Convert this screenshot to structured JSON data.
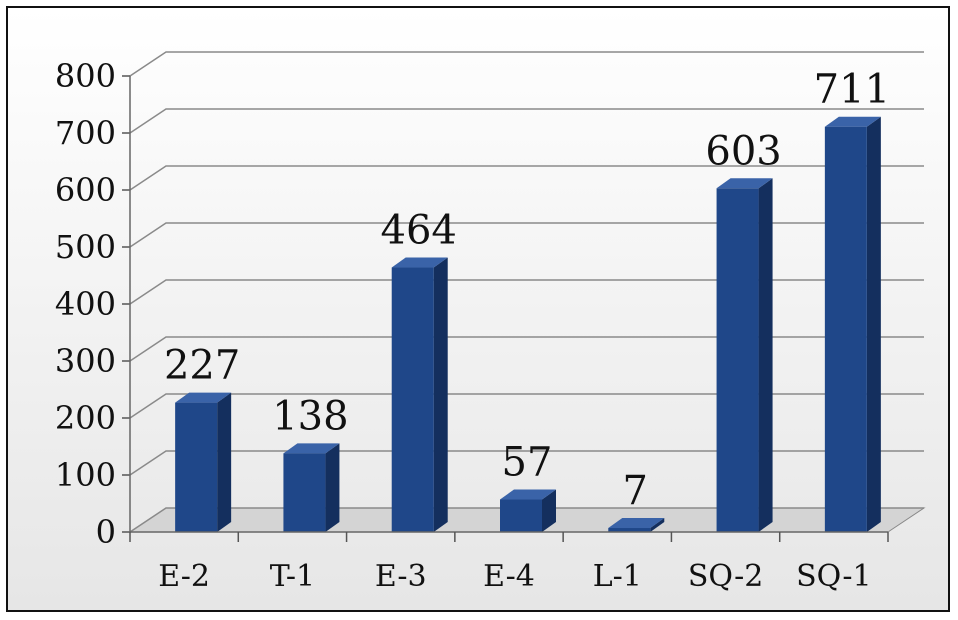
{
  "chart_data": {
    "type": "bar",
    "categories": [
      "E-2",
      "T-1",
      "E-3",
      "E-4",
      "L-1",
      "SQ-2",
      "SQ-1"
    ],
    "values": [
      227,
      138,
      464,
      57,
      7,
      603,
      711
    ],
    "data_labels": [
      "227",
      "138",
      "464",
      "57",
      "7",
      "603",
      "711"
    ],
    "yticks": [
      "0",
      "100",
      "200",
      "300",
      "400",
      "500",
      "600",
      "700",
      "800"
    ],
    "ylim": [
      0,
      800
    ],
    "grid": true,
    "style": "3d-column",
    "bar_color": "#1f4789",
    "bar_side_color": "#142f5e",
    "bar_top_color": "#3a63a8"
  }
}
